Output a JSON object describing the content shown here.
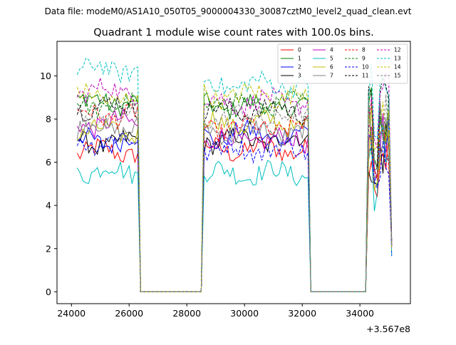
{
  "header": "Data file: modeM0/AS1A10_050T05_9000004330_30087cztM0_level2_quad_clean.evt",
  "chart_data": {
    "type": "line",
    "title": "Quadrant 1 module wise count rates with 100.0s bins.",
    "xlabel": "",
    "ylabel": "",
    "x_offset_label": "+3.567e8",
    "xlim": [
      23500,
      35750
    ],
    "ylim": [
      -0.55,
      11.6
    ],
    "x_ticks": [
      24000,
      26000,
      28000,
      30000,
      32000,
      34000
    ],
    "x_tick_labels": [
      "24000",
      "26000",
      "28000",
      "30000",
      "32000",
      "34000"
    ],
    "y_ticks": [
      0,
      2,
      4,
      6,
      8,
      10
    ],
    "y_tick_labels": [
      "0",
      "2",
      "4",
      "6",
      "8",
      "10"
    ],
    "legend_position": "top-right",
    "segments": [
      {
        "start": 24200,
        "end": 26300,
        "step": 100
      },
      {
        "start": 28600,
        "end": 32200,
        "step": 100
      },
      {
        "start": 34300,
        "end": 35100,
        "step": 100
      }
    ],
    "series": [
      {
        "name": "0",
        "color": "#ff0000",
        "dash": false,
        "levels": [
          6.5,
          6.6,
          6.6
        ]
      },
      {
        "name": "1",
        "color": "#008000",
        "dash": false,
        "levels": [
          8.8,
          8.6,
          8.0
        ]
      },
      {
        "name": "2",
        "color": "#0000ff",
        "dash": false,
        "levels": [
          7.0,
          7.3,
          7.0
        ]
      },
      {
        "name": "3",
        "color": "#000000",
        "dash": false,
        "levels": [
          6.9,
          7.0,
          6.8
        ]
      },
      {
        "name": "4",
        "color": "#bf00bf",
        "dash": false,
        "levels": [
          7.8,
          7.0,
          7.4
        ]
      },
      {
        "name": "5",
        "color": "#00bfbf",
        "dash": false,
        "levels": [
          5.6,
          5.5,
          6.2
        ]
      },
      {
        "name": "6",
        "color": "#bfbf00",
        "dash": false,
        "levels": [
          7.4,
          7.8,
          7.2
        ]
      },
      {
        "name": "7",
        "color": "#808080",
        "dash": false,
        "levels": [
          7.6,
          7.4,
          7.6
        ]
      },
      {
        "name": "8",
        "color": "#ff0000",
        "dash": true,
        "levels": [
          8.2,
          7.6,
          7.4
        ]
      },
      {
        "name": "9",
        "color": "#008000",
        "dash": true,
        "levels": [
          8.6,
          8.7,
          8.2
        ]
      },
      {
        "name": "10",
        "color": "#0000ff",
        "dash": true,
        "levels": [
          7.0,
          6.6,
          6.8
        ]
      },
      {
        "name": "11",
        "color": "#000000",
        "dash": true,
        "levels": [
          8.6,
          8.4,
          8.2
        ]
      },
      {
        "name": "12",
        "color": "#bf00bf",
        "dash": true,
        "levels": [
          9.3,
          8.8,
          8.6
        ]
      },
      {
        "name": "13",
        "color": "#00bfbf",
        "dash": true,
        "levels": [
          10.3,
          9.6,
          9.2
        ]
      },
      {
        "name": "14",
        "color": "#bfbf00",
        "dash": true,
        "levels": [
          9.0,
          9.1,
          8.5
        ]
      },
      {
        "name": "15",
        "color": "#808080",
        "dash": true,
        "levels": [
          8.0,
          8.1,
          7.8
        ]
      }
    ]
  }
}
